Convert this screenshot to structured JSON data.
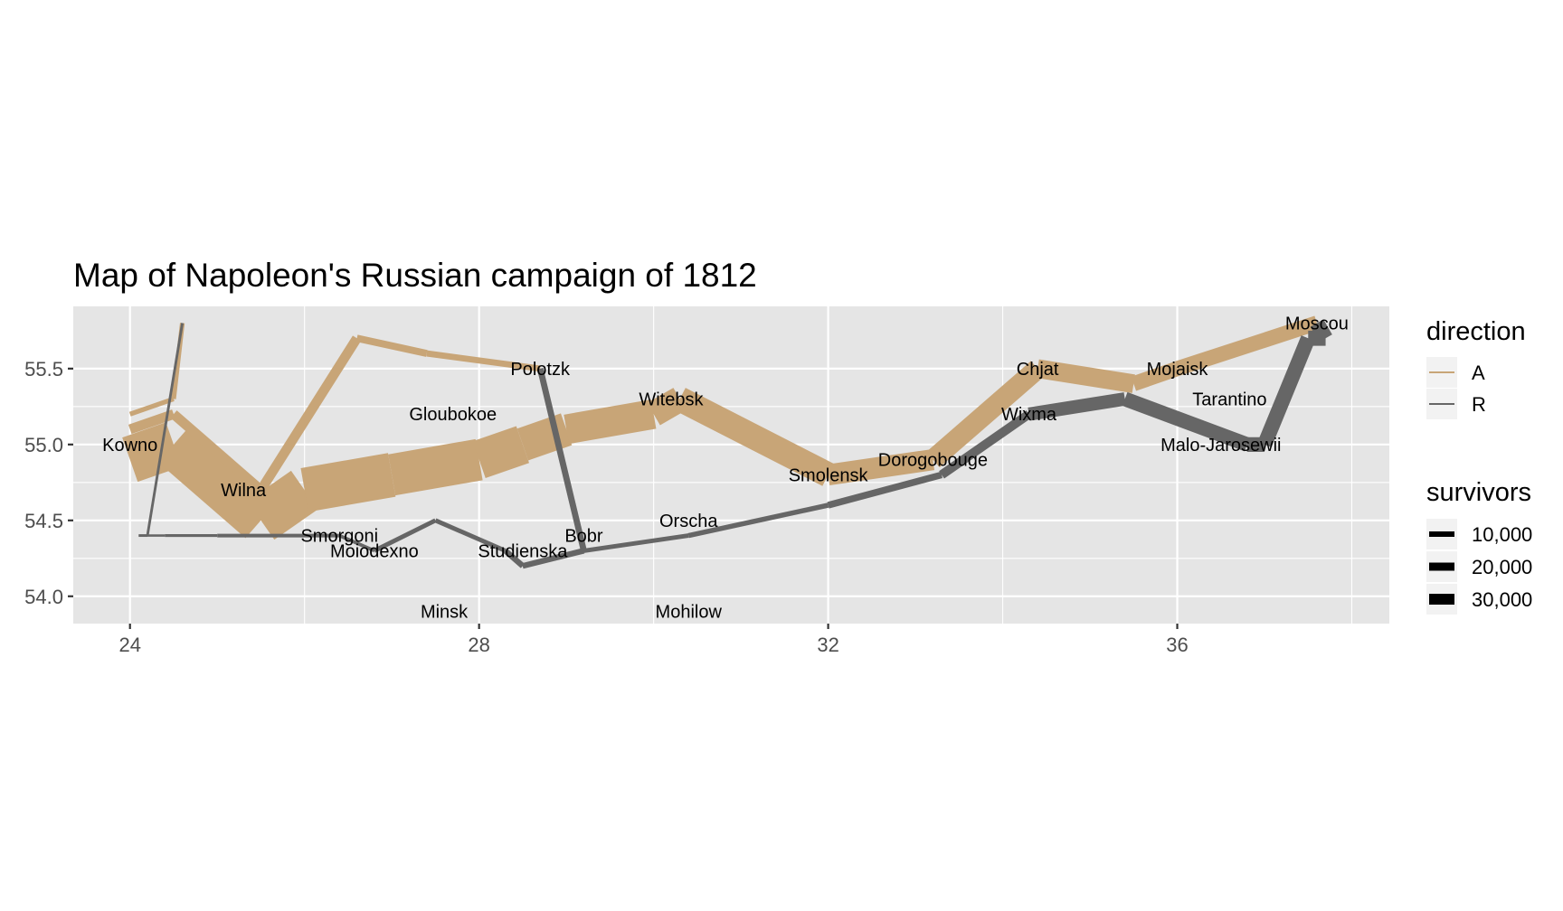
{
  "chart_data": {
    "type": "line",
    "title": "Map of Napoleon's Russian campaign of 1812",
    "xlabel": "",
    "ylabel": "",
    "xlim": [
      23.35,
      38.43
    ],
    "ylim": [
      53.82,
      55.91
    ],
    "x_ticks": [
      24,
      28,
      32,
      36
    ],
    "x_tick_labels": [
      "24",
      "28",
      "32",
      "36"
    ],
    "y_ticks": [
      54.0,
      54.5,
      55.0,
      55.5
    ],
    "y_tick_labels": [
      "54.0",
      "54.5",
      "55.0",
      "55.5"
    ],
    "grid": true,
    "legend_placement": "right",
    "colors": {
      "advance": "#c8a577",
      "retreat": "#666666",
      "panel": "#e5e5e5",
      "grid": "#ffffff",
      "tick_text": "#4d4d4d"
    },
    "legend_direction": {
      "title": "direction",
      "entries": [
        {
          "label": "A",
          "color": "#c8a577"
        },
        {
          "label": "R",
          "color": "#666666"
        }
      ]
    },
    "legend_survivors": {
      "title": "survivors",
      "entries": [
        {
          "label": "10,000",
          "value": 10000
        },
        {
          "label": "20,000",
          "value": 20000
        },
        {
          "label": "30,000",
          "value": 30000
        }
      ]
    },
    "series": [
      {
        "name": "A",
        "group": 1,
        "points": [
          {
            "lon": 24.0,
            "lat": 54.9,
            "survivors": 340000
          },
          {
            "lon": 24.5,
            "lat": 55.0,
            "survivors": 340000
          },
          {
            "lon": 25.5,
            "lat": 54.5,
            "survivors": 340000
          },
          {
            "lon": 26.0,
            "lat": 54.7,
            "survivors": 320000
          },
          {
            "lon": 27.0,
            "lat": 54.8,
            "survivors": 300000
          },
          {
            "lon": 28.0,
            "lat": 54.9,
            "survivors": 280000
          },
          {
            "lon": 28.5,
            "lat": 55.0,
            "survivors": 240000
          },
          {
            "lon": 29.0,
            "lat": 55.1,
            "survivors": 210000
          },
          {
            "lon": 30.0,
            "lat": 55.2,
            "survivors": 180000
          },
          {
            "lon": 30.3,
            "lat": 55.3,
            "survivors": 175000
          },
          {
            "lon": 32.0,
            "lat": 54.8,
            "survivors": 145000
          },
          {
            "lon": 33.2,
            "lat": 54.9,
            "survivors": 140000
          },
          {
            "lon": 34.4,
            "lat": 55.5,
            "survivors": 127100
          },
          {
            "lon": 35.5,
            "lat": 55.4,
            "survivors": 100000
          },
          {
            "lon": 36.0,
            "lat": 55.5,
            "survivors": 100000
          },
          {
            "lon": 37.6,
            "lat": 55.8,
            "survivors": 100000
          }
        ]
      },
      {
        "name": "R",
        "group": 1,
        "points": [
          {
            "lon": 37.6,
            "lat": 55.8,
            "survivors": 100000
          },
          {
            "lon": 37.7,
            "lat": 55.7,
            "survivors": 100000
          },
          {
            "lon": 37.5,
            "lat": 55.7,
            "survivors": 98000
          },
          {
            "lon": 37.0,
            "lat": 55.0,
            "survivors": 97000
          },
          {
            "lon": 36.8,
            "lat": 55.0,
            "survivors": 96000
          },
          {
            "lon": 35.4,
            "lat": 55.3,
            "survivors": 87000
          },
          {
            "lon": 34.3,
            "lat": 55.2,
            "survivors": 55000
          },
          {
            "lon": 33.3,
            "lat": 54.8,
            "survivors": 37000
          },
          {
            "lon": 32.0,
            "lat": 54.6,
            "survivors": 24000
          },
          {
            "lon": 30.4,
            "lat": 54.4,
            "survivors": 20000
          },
          {
            "lon": 29.2,
            "lat": 54.3,
            "survivors": 20000
          },
          {
            "lon": 28.5,
            "lat": 54.2,
            "survivors": 20000
          },
          {
            "lon": 28.3,
            "lat": 54.3,
            "survivors": 20000
          },
          {
            "lon": 27.5,
            "lat": 54.5,
            "survivors": 20000
          },
          {
            "lon": 26.8,
            "lat": 54.3,
            "survivors": 12000
          },
          {
            "lon": 26.4,
            "lat": 54.4,
            "survivors": 14000
          },
          {
            "lon": 25.0,
            "lat": 54.4,
            "survivors": 8000
          },
          {
            "lon": 24.4,
            "lat": 54.4,
            "survivors": 4000
          },
          {
            "lon": 24.2,
            "lat": 54.4,
            "survivors": 4000
          },
          {
            "lon": 24.1,
            "lat": 54.4,
            "survivors": 4000
          }
        ]
      },
      {
        "name": "A",
        "group": 2,
        "points": [
          {
            "lon": 24.0,
            "lat": 55.1,
            "survivors": 60000
          },
          {
            "lon": 24.5,
            "lat": 55.2,
            "survivors": 60000
          },
          {
            "lon": 25.5,
            "lat": 54.7,
            "survivors": 60000
          },
          {
            "lon": 26.6,
            "lat": 55.7,
            "survivors": 40000
          },
          {
            "lon": 27.4,
            "lat": 55.6,
            "survivors": 33000
          }
        ]
      },
      {
        "name": "A",
        "group": 2,
        "points": [
          {
            "lon": 27.4,
            "lat": 55.6,
            "survivors": 33000
          },
          {
            "lon": 28.7,
            "lat": 55.5,
            "survivors": 33000
          }
        ]
      },
      {
        "name": "R",
        "group": 2,
        "points": [
          {
            "lon": 28.7,
            "lat": 55.5,
            "survivors": 33000
          },
          {
            "lon": 29.2,
            "lat": 54.3,
            "survivors": 30000
          },
          {
            "lon": 28.5,
            "lat": 54.2,
            "survivors": 30000
          },
          {
            "lon": 28.3,
            "lat": 54.3,
            "survivors": 28000
          }
        ]
      },
      {
        "name": "A",
        "group": 3,
        "points": [
          {
            "lon": 24.0,
            "lat": 55.2,
            "survivors": 22000
          },
          {
            "lon": 24.5,
            "lat": 55.3,
            "survivors": 22000
          },
          {
            "lon": 24.6,
            "lat": 55.8,
            "survivors": 6000
          }
        ]
      },
      {
        "name": "R",
        "group": 3,
        "points": [
          {
            "lon": 24.6,
            "lat": 55.8,
            "survivors": 6000
          },
          {
            "lon": 24.2,
            "lat": 54.4,
            "survivors": 6000
          },
          {
            "lon": 24.1,
            "lat": 54.4,
            "survivors": 6000
          }
        ]
      }
    ],
    "cities": [
      {
        "name": "Kowno",
        "lon": 24.0,
        "lat": 55.0
      },
      {
        "name": "Wilna",
        "lon": 25.3,
        "lat": 54.7
      },
      {
        "name": "Smorgoni",
        "lon": 26.4,
        "lat": 54.4
      },
      {
        "name": "Moiodexno",
        "lon": 26.8,
        "lat": 54.3
      },
      {
        "name": "Gloubokoe",
        "lon": 27.7,
        "lat": 55.2
      },
      {
        "name": "Minsk",
        "lon": 27.6,
        "lat": 53.9
      },
      {
        "name": "Studienska",
        "lon": 28.5,
        "lat": 54.3
      },
      {
        "name": "Polotzk",
        "lon": 28.7,
        "lat": 55.5
      },
      {
        "name": "Bobr",
        "lon": 29.2,
        "lat": 54.4
      },
      {
        "name": "Witebsk",
        "lon": 30.2,
        "lat": 55.3
      },
      {
        "name": "Orscha",
        "lon": 30.4,
        "lat": 54.5
      },
      {
        "name": "Mohilow",
        "lon": 30.4,
        "lat": 53.9
      },
      {
        "name": "Smolensk",
        "lon": 32.0,
        "lat": 54.8
      },
      {
        "name": "Dorogobouge",
        "lon": 33.2,
        "lat": 54.9
      },
      {
        "name": "Wixma",
        "lon": 34.3,
        "lat": 55.2
      },
      {
        "name": "Chjat",
        "lon": 34.4,
        "lat": 55.5
      },
      {
        "name": "Mojaisk",
        "lon": 36.0,
        "lat": 55.5
      },
      {
        "name": "Moscou",
        "lon": 37.6,
        "lat": 55.8
      },
      {
        "name": "Tarantino",
        "lon": 36.6,
        "lat": 55.3
      },
      {
        "name": "Malo-Jarosewii",
        "lon": 36.5,
        "lat": 55.0
      }
    ]
  }
}
